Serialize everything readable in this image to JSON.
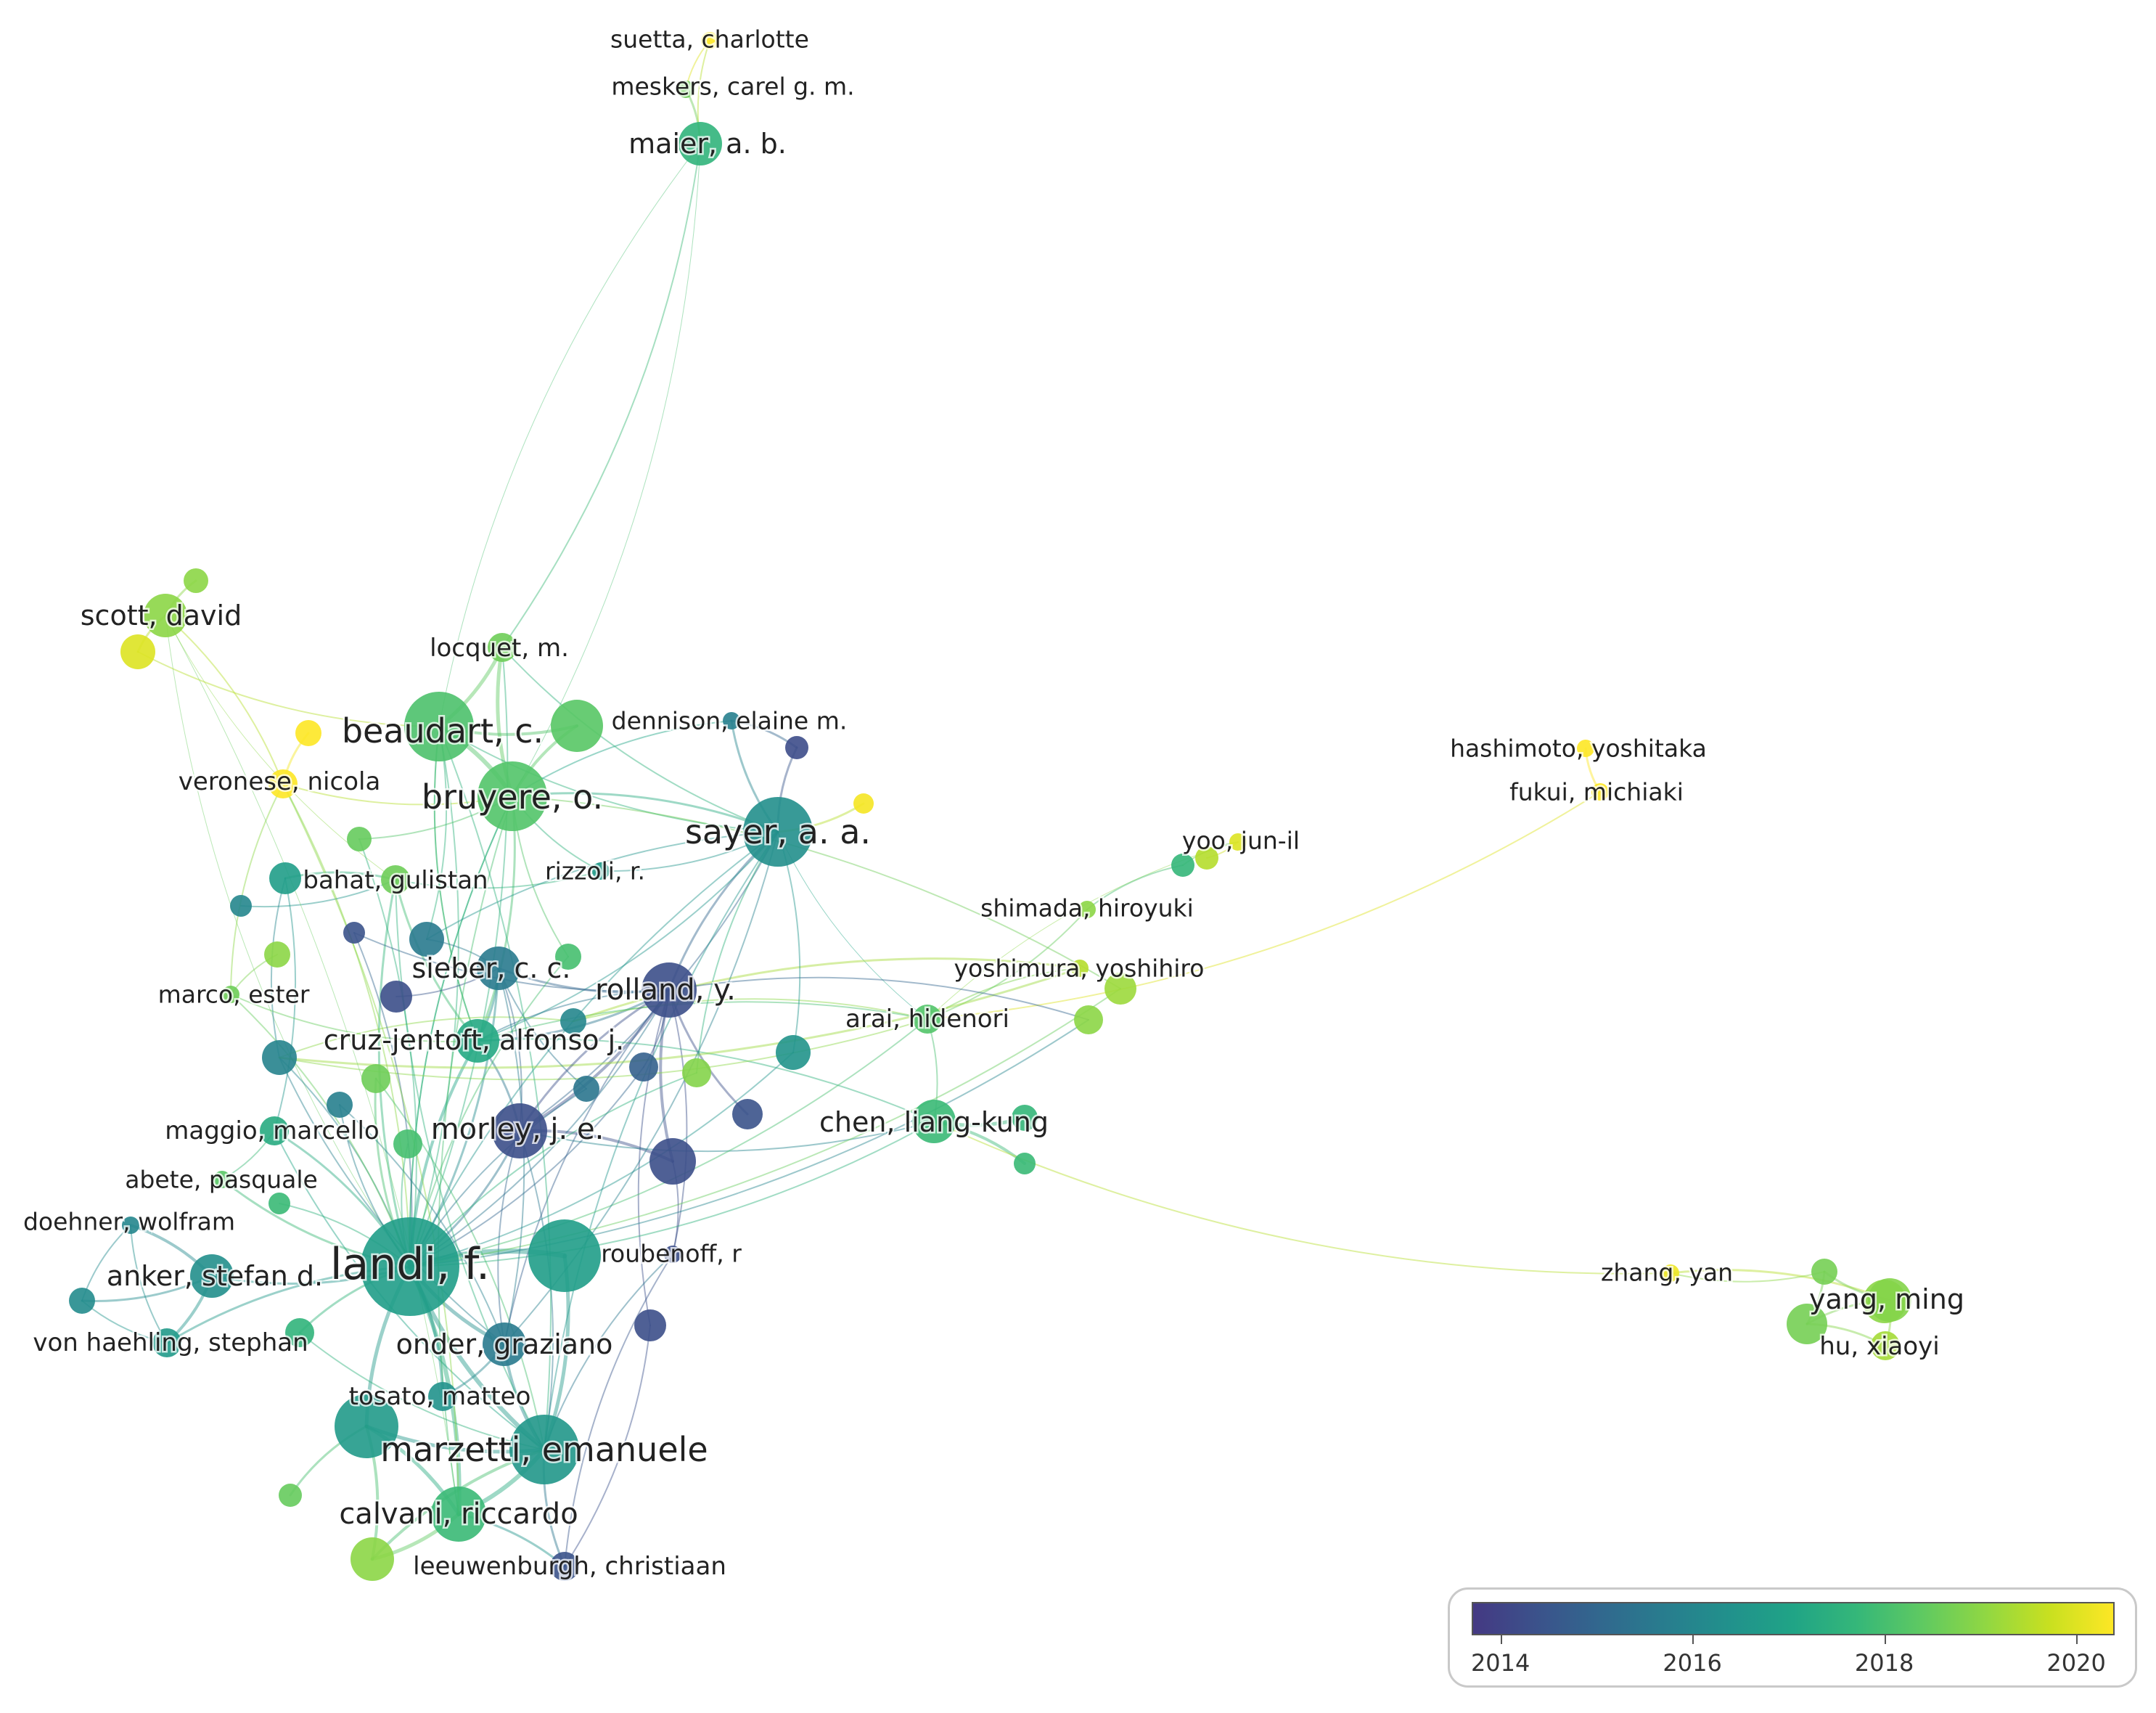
{
  "colors": {
    "scale": [
      "#443983",
      "#3b528b",
      "#31688e",
      "#287d8e",
      "#21918c",
      "#20a486",
      "#35b779",
      "#5ec962",
      "#90d743",
      "#c8e020",
      "#fde725"
    ]
  },
  "nodes": [
    {
      "id": "suetta",
      "label": "suetta, charlotte",
      "year": 2020.6,
      "weight": 1,
      "size": "xs"
    },
    {
      "id": "meskers",
      "label": "meskers, carel g. m.",
      "year": 2018.6,
      "weight": 1,
      "size": "xs"
    },
    {
      "id": "maier",
      "label": "maier, a. b.",
      "year": 2017.6,
      "weight": 3,
      "size": "m"
    },
    {
      "id": "scott",
      "label": "scott, david",
      "year": 2019.0,
      "weight": 2,
      "size": "m"
    },
    {
      "id": "locquet",
      "label": "locquet, m.",
      "year": 2018.6,
      "weight": 2,
      "size": "s"
    },
    {
      "id": "beaudart",
      "label": "beaudart, c.",
      "year": 2018.1,
      "weight": 8,
      "size": "xl"
    },
    {
      "id": "dennison",
      "label": "dennison, elaine m.",
      "year": 2015.8,
      "weight": 1,
      "size": "xs"
    },
    {
      "id": "veronese",
      "label": "veronese, nicola",
      "year": 2020.4,
      "weight": 2,
      "size": "s"
    },
    {
      "id": "bruyere",
      "label": "bruyere, o.",
      "year": 2018.2,
      "weight": 8,
      "size": "xl"
    },
    {
      "id": "sayer",
      "label": "sayer, a. a.",
      "year": 2016.3,
      "weight": 8,
      "size": "xl"
    },
    {
      "id": "rizzoli",
      "label": "rizzoli, r.",
      "year": 2016.7,
      "weight": 1,
      "size": "xs"
    },
    {
      "id": "bahat",
      "label": "bahat, gulistan",
      "year": 2018.6,
      "weight": 2,
      "size": "s"
    },
    {
      "id": "sieber",
      "label": "sieber, c. c.",
      "year": 2015.6,
      "weight": 4,
      "size": "m"
    },
    {
      "id": "rolland",
      "label": "rolland, y.",
      "year": 2014.3,
      "weight": 5,
      "size": "l"
    },
    {
      "id": "marco",
      "label": "marco, ester",
      "year": 2018.6,
      "weight": 1,
      "size": "xs"
    },
    {
      "id": "cruzjentoft",
      "label": "cruz-jentoft, alfonso j.",
      "year": 2017.2,
      "weight": 5,
      "size": "m"
    },
    {
      "id": "arai",
      "label": "arai, hidenori",
      "year": 2018.2,
      "weight": 2,
      "size": "s"
    },
    {
      "id": "maggio",
      "label": "maggio, marcello",
      "year": 2017.3,
      "weight": 2,
      "size": "s"
    },
    {
      "id": "morley",
      "label": "morley, j. e.",
      "year": 2014.3,
      "weight": 5,
      "size": "l"
    },
    {
      "id": "chen",
      "label": "chen, liang-kung",
      "year": 2017.8,
      "weight": 3,
      "size": "m"
    },
    {
      "id": "abete",
      "label": "abete, pasquale",
      "year": 2018.3,
      "weight": 1,
      "size": "xs"
    },
    {
      "id": "doehner",
      "label": "doehner, wolfram",
      "year": 2016.0,
      "weight": 1,
      "size": "xs"
    },
    {
      "id": "landi",
      "label": "landi, f.",
      "year": 2016.8,
      "weight": 10,
      "size": "xxl"
    },
    {
      "id": "roubenoff",
      "label": "roubenoff, r",
      "year": 2014.3,
      "weight": 1,
      "size": "xs"
    },
    {
      "id": "anker",
      "label": "anker, stefan d.",
      "year": 2016.3,
      "weight": 3,
      "size": "m"
    },
    {
      "id": "vonhaehling",
      "label": "von haehling, stephan",
      "year": 2016.7,
      "weight": 2,
      "size": "s"
    },
    {
      "id": "onder",
      "label": "onder, graziano",
      "year": 2015.6,
      "weight": 4,
      "size": "m"
    },
    {
      "id": "tosato",
      "label": "tosato, matteo",
      "year": 2016.4,
      "weight": 2,
      "size": "s"
    },
    {
      "id": "marzetti",
      "label": "marzetti, emanuele",
      "year": 2016.6,
      "weight": 8,
      "size": "xl"
    },
    {
      "id": "calvani",
      "label": "calvani, riccardo",
      "year": 2017.8,
      "weight": 6,
      "size": "l"
    },
    {
      "id": "leeuwenburgh",
      "label": "leeuwenburgh, christiaan",
      "year": 2014.4,
      "weight": 2,
      "size": "s"
    },
    {
      "id": "yoo",
      "label": "yoo, jun-il",
      "year": 2020.0,
      "weight": 1,
      "size": "xs"
    },
    {
      "id": "shimada",
      "label": "shimada, hiroyuki",
      "year": 2019.0,
      "weight": 1,
      "size": "xs"
    },
    {
      "id": "yoshimura",
      "label": "yoshimura, yoshihiro",
      "year": 2019.5,
      "weight": 1,
      "size": "xs"
    },
    {
      "id": "hashimoto",
      "label": "hashimoto, yoshitaka",
      "year": 2020.8,
      "weight": 1,
      "size": "xs"
    },
    {
      "id": "fukui",
      "label": "fukui, michiaki",
      "year": 2020.7,
      "weight": 1,
      "size": "xs"
    },
    {
      "id": "zhang",
      "label": "zhang, yan",
      "year": 2020.2,
      "weight": 1,
      "size": "xs"
    },
    {
      "id": "yang",
      "label": "yang, ming",
      "year": 2018.9,
      "weight": 3,
      "size": "m"
    },
    {
      "id": "hu",
      "label": "hu, xiaoyi",
      "year": 2019.3,
      "weight": 2,
      "size": "s"
    }
  ],
  "legend": {
    "colormap": "viridis",
    "min_year": 2013.7,
    "max_year": 2020.4,
    "tick_labels": [
      "2014",
      "2016",
      "2018",
      "2020"
    ],
    "tick_values": [
      2014,
      2016,
      2018,
      2020
    ]
  }
}
